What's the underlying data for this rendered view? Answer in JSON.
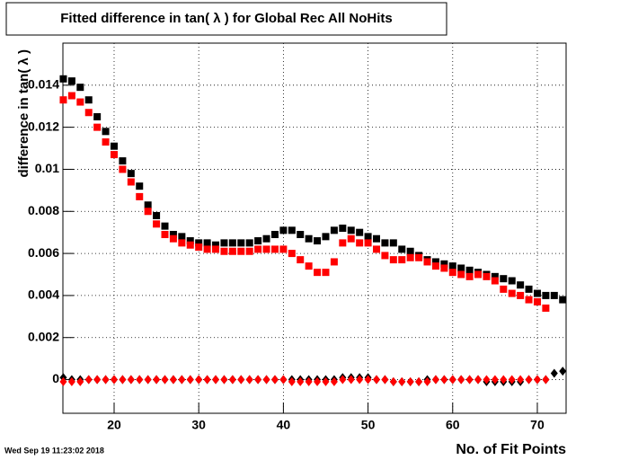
{
  "chart_data": {
    "type": "scatter",
    "title": "Fitted difference in tan( λ ) for Global Rec All NoHits",
    "ylabel": "difference in tan( λ )",
    "xlabel": "No. of Fit Points",
    "timestamp": "Wed Sep 19 11:23:02 2018",
    "xlim": [
      13.95,
      73.4
    ],
    "ylim": [
      -0.0016,
      0.016
    ],
    "xticks": [
      20,
      30,
      40,
      50,
      60,
      70
    ],
    "yticks": [
      0,
      0.002,
      0.004,
      0.006,
      0.008,
      0.01,
      0.012,
      0.014
    ],
    "grid": true,
    "series": [
      {
        "color": "#000000",
        "marker": "square",
        "x": [
          14,
          15,
          16,
          17,
          18,
          19,
          20,
          21,
          22,
          23,
          24,
          25,
          26,
          27,
          28,
          29,
          30,
          31,
          32,
          33,
          34,
          35,
          36,
          37,
          38,
          39,
          40,
          41,
          42,
          43,
          44,
          45,
          46,
          47,
          48,
          49,
          50,
          51,
          52,
          53,
          54,
          55,
          56,
          57,
          58,
          59,
          60,
          61,
          62,
          63,
          64,
          65,
          66,
          67,
          68,
          69,
          70,
          71,
          72,
          73
        ],
        "values": [
          0.0143,
          0.0142,
          0.0139,
          0.0133,
          0.0125,
          0.0118,
          0.0111,
          0.0104,
          0.0098,
          0.0092,
          0.0083,
          0.0078,
          0.0073,
          0.0069,
          0.0068,
          0.0066,
          0.0065,
          0.0065,
          0.0064,
          0.0065,
          0.0065,
          0.0065,
          0.0065,
          0.0066,
          0.0067,
          0.0069,
          0.0071,
          0.0071,
          0.0069,
          0.0067,
          0.0066,
          0.0068,
          0.0071,
          0.0072,
          0.0071,
          0.007,
          0.0068,
          0.0067,
          0.0065,
          0.0065,
          0.0062,
          0.0061,
          0.0059,
          0.0057,
          0.0056,
          0.0055,
          0.0054,
          0.0053,
          0.0052,
          0.0051,
          0.005,
          0.0049,
          0.0048,
          0.0047,
          0.0045,
          0.0043,
          0.0041,
          0.004,
          0.004,
          0.0038
        ]
      },
      {
        "color": "#ff0000",
        "marker": "square",
        "x": [
          14,
          15,
          16,
          17,
          18,
          19,
          20,
          21,
          22,
          23,
          24,
          25,
          26,
          27,
          28,
          29,
          30,
          31,
          32,
          33,
          34,
          35,
          36,
          37,
          38,
          39,
          40,
          41,
          42,
          43,
          44,
          45,
          46,
          47,
          48,
          49,
          50,
          51,
          52,
          53,
          54,
          55,
          56,
          57,
          58,
          59,
          60,
          61,
          62,
          63,
          64,
          65,
          66,
          67,
          68,
          69,
          70,
          71
        ],
        "values": [
          0.0133,
          0.0135,
          0.0132,
          0.0127,
          0.012,
          0.0113,
          0.0107,
          0.01,
          0.0094,
          0.0087,
          0.008,
          0.0074,
          0.0069,
          0.0067,
          0.0065,
          0.0064,
          0.0063,
          0.0062,
          0.0062,
          0.0061,
          0.0061,
          0.0061,
          0.0061,
          0.0062,
          0.0062,
          0.0062,
          0.0062,
          0.006,
          0.0057,
          0.0054,
          0.0051,
          0.0051,
          0.0056,
          0.0065,
          0.0067,
          0.0065,
          0.0065,
          0.0062,
          0.0059,
          0.0057,
          0.0057,
          0.0058,
          0.0058,
          0.0056,
          0.0054,
          0.0053,
          0.0051,
          0.005,
          0.0049,
          0.005,
          0.0049,
          0.0047,
          0.0043,
          0.0041,
          0.004,
          0.0038,
          0.0037,
          0.0034
        ]
      },
      {
        "color": "#000000",
        "marker": "diamond",
        "x": [
          14,
          15,
          16,
          17,
          18,
          19,
          20,
          21,
          22,
          23,
          24,
          25,
          26,
          27,
          28,
          29,
          30,
          31,
          32,
          33,
          34,
          35,
          36,
          37,
          38,
          39,
          40,
          41,
          42,
          43,
          44,
          45,
          46,
          47,
          48,
          49,
          50,
          51,
          52,
          53,
          54,
          55,
          56,
          57,
          58,
          59,
          60,
          61,
          62,
          63,
          64,
          65,
          66,
          67,
          68,
          69,
          70,
          71,
          72,
          73
        ],
        "values": [
          0.0001,
          0,
          0,
          0,
          0,
          0,
          0,
          0,
          0,
          0,
          0,
          0,
          0,
          0,
          0,
          0,
          0,
          0,
          0,
          0,
          0,
          0,
          0,
          0,
          0,
          0,
          0,
          0,
          0,
          0,
          0,
          0,
          0,
          0.0001,
          0.0001,
          0.0001,
          0.0001,
          0,
          0,
          -0.0001,
          -0.0001,
          -0.0001,
          -0.0001,
          0,
          0,
          0,
          0,
          0,
          0,
          0,
          -0.0001,
          -0.0001,
          -0.0001,
          -0.0001,
          -0.0001,
          0,
          0,
          0,
          0.0003,
          0.0004
        ]
      },
      {
        "color": "#ff0000",
        "marker": "diamond",
        "x": [
          14,
          15,
          16,
          17,
          18,
          19,
          20,
          21,
          22,
          23,
          24,
          25,
          26,
          27,
          28,
          29,
          30,
          31,
          32,
          33,
          34,
          35,
          36,
          37,
          38,
          39,
          40,
          41,
          42,
          43,
          44,
          45,
          46,
          47,
          48,
          49,
          50,
          51,
          52,
          53,
          54,
          55,
          56,
          57,
          58,
          59,
          60,
          61,
          62,
          63,
          64,
          65,
          66,
          67,
          68,
          69,
          70,
          71
        ],
        "values": [
          -0.0001,
          -0.0001,
          -0.0001,
          0,
          0,
          0,
          0,
          0,
          0,
          0,
          0,
          0,
          0,
          0,
          0,
          0,
          0,
          0,
          0,
          0,
          0,
          0,
          0,
          0,
          0,
          0,
          0,
          -0.0001,
          -0.0001,
          -0.0001,
          -0.0001,
          -0.0001,
          -0.0001,
          0,
          0,
          0,
          0,
          0,
          0,
          -0.0001,
          -0.0001,
          -0.0001,
          -0.0001,
          -0.0001,
          0,
          0,
          0,
          0,
          0,
          0,
          0,
          0,
          0,
          0,
          0,
          0,
          0,
          0
        ]
      }
    ]
  }
}
